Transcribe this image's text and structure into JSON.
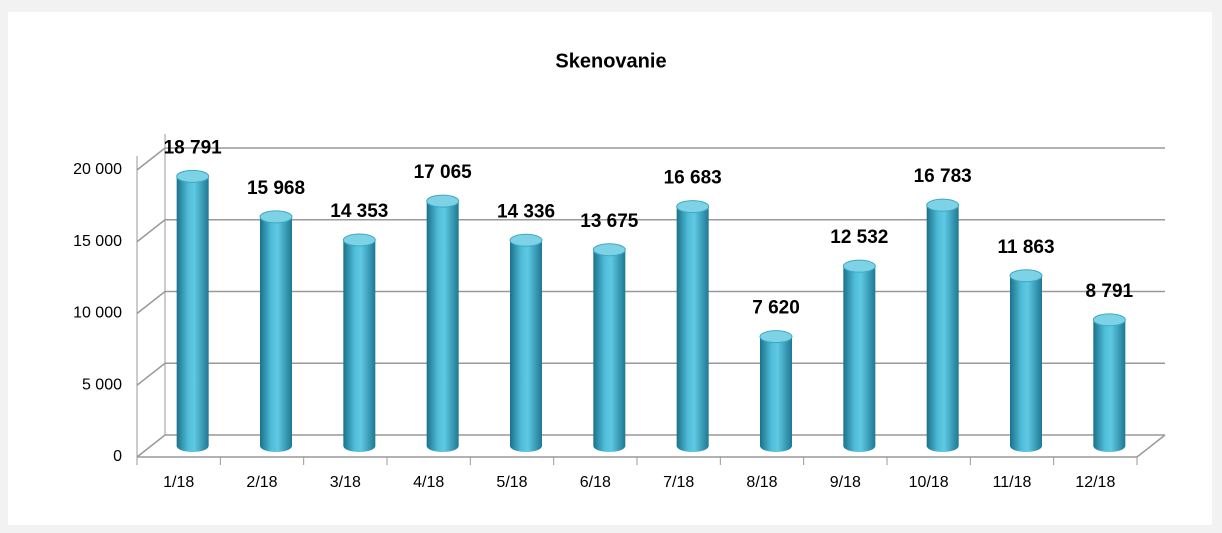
{
  "chart_data": {
    "type": "bar",
    "title": "Skenovanie",
    "categories": [
      "1/18",
      "2/18",
      "3/18",
      "4/18",
      "5/18",
      "6/18",
      "7/18",
      "8/18",
      "9/18",
      "10/18",
      "11/18",
      "12/18"
    ],
    "values": [
      18791,
      15968,
      14353,
      17065,
      14336,
      13675,
      16683,
      7620,
      12532,
      16783,
      11863,
      8791
    ],
    "value_labels": [
      "18 791",
      "15 968",
      "14 353",
      "17 065",
      "14 336",
      "13 675",
      "16 683",
      "7 620",
      "12 532",
      "16 783",
      "11 863",
      "8 791"
    ],
    "color": "#31a2bf",
    "ylim": [
      0,
      20000
    ],
    "yticks": [
      0,
      {
        "value": 5000,
        "label": "5 000"
      },
      {
        "value": 10000,
        "label": "10 000"
      },
      {
        "value": 15000,
        "label": "15 000"
      },
      {
        "value": 20000,
        "label": "20 000"
      }
    ],
    "grid": true
  }
}
